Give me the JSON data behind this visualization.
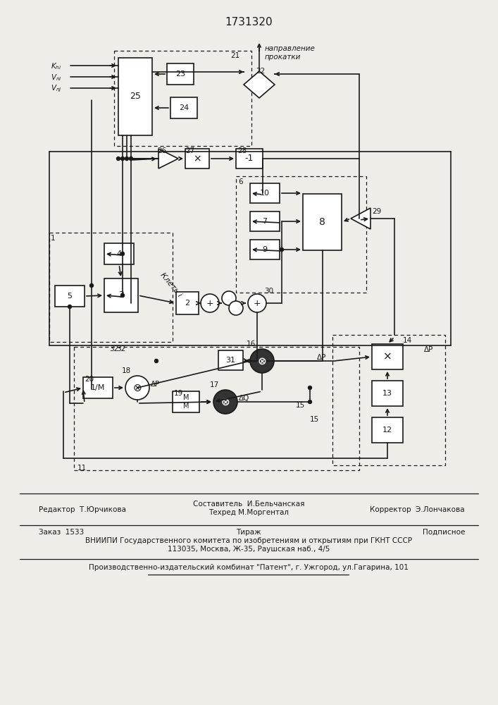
{
  "title": "1731320",
  "bg_color": "#f0ede8",
  "line_color": "#1a1a1a",
  "footer_line2": "ВНИИПИ Государственного комитета по изобретениям и открытиям при ГКНТ СССР",
  "footer_line3": "113035, Москва, Ж-35, Раушская наб., 4/5",
  "footer_line4": "Производственно-издательский комбинат \"Патент\", г. Ужгород, ул.Гагарина, 101"
}
